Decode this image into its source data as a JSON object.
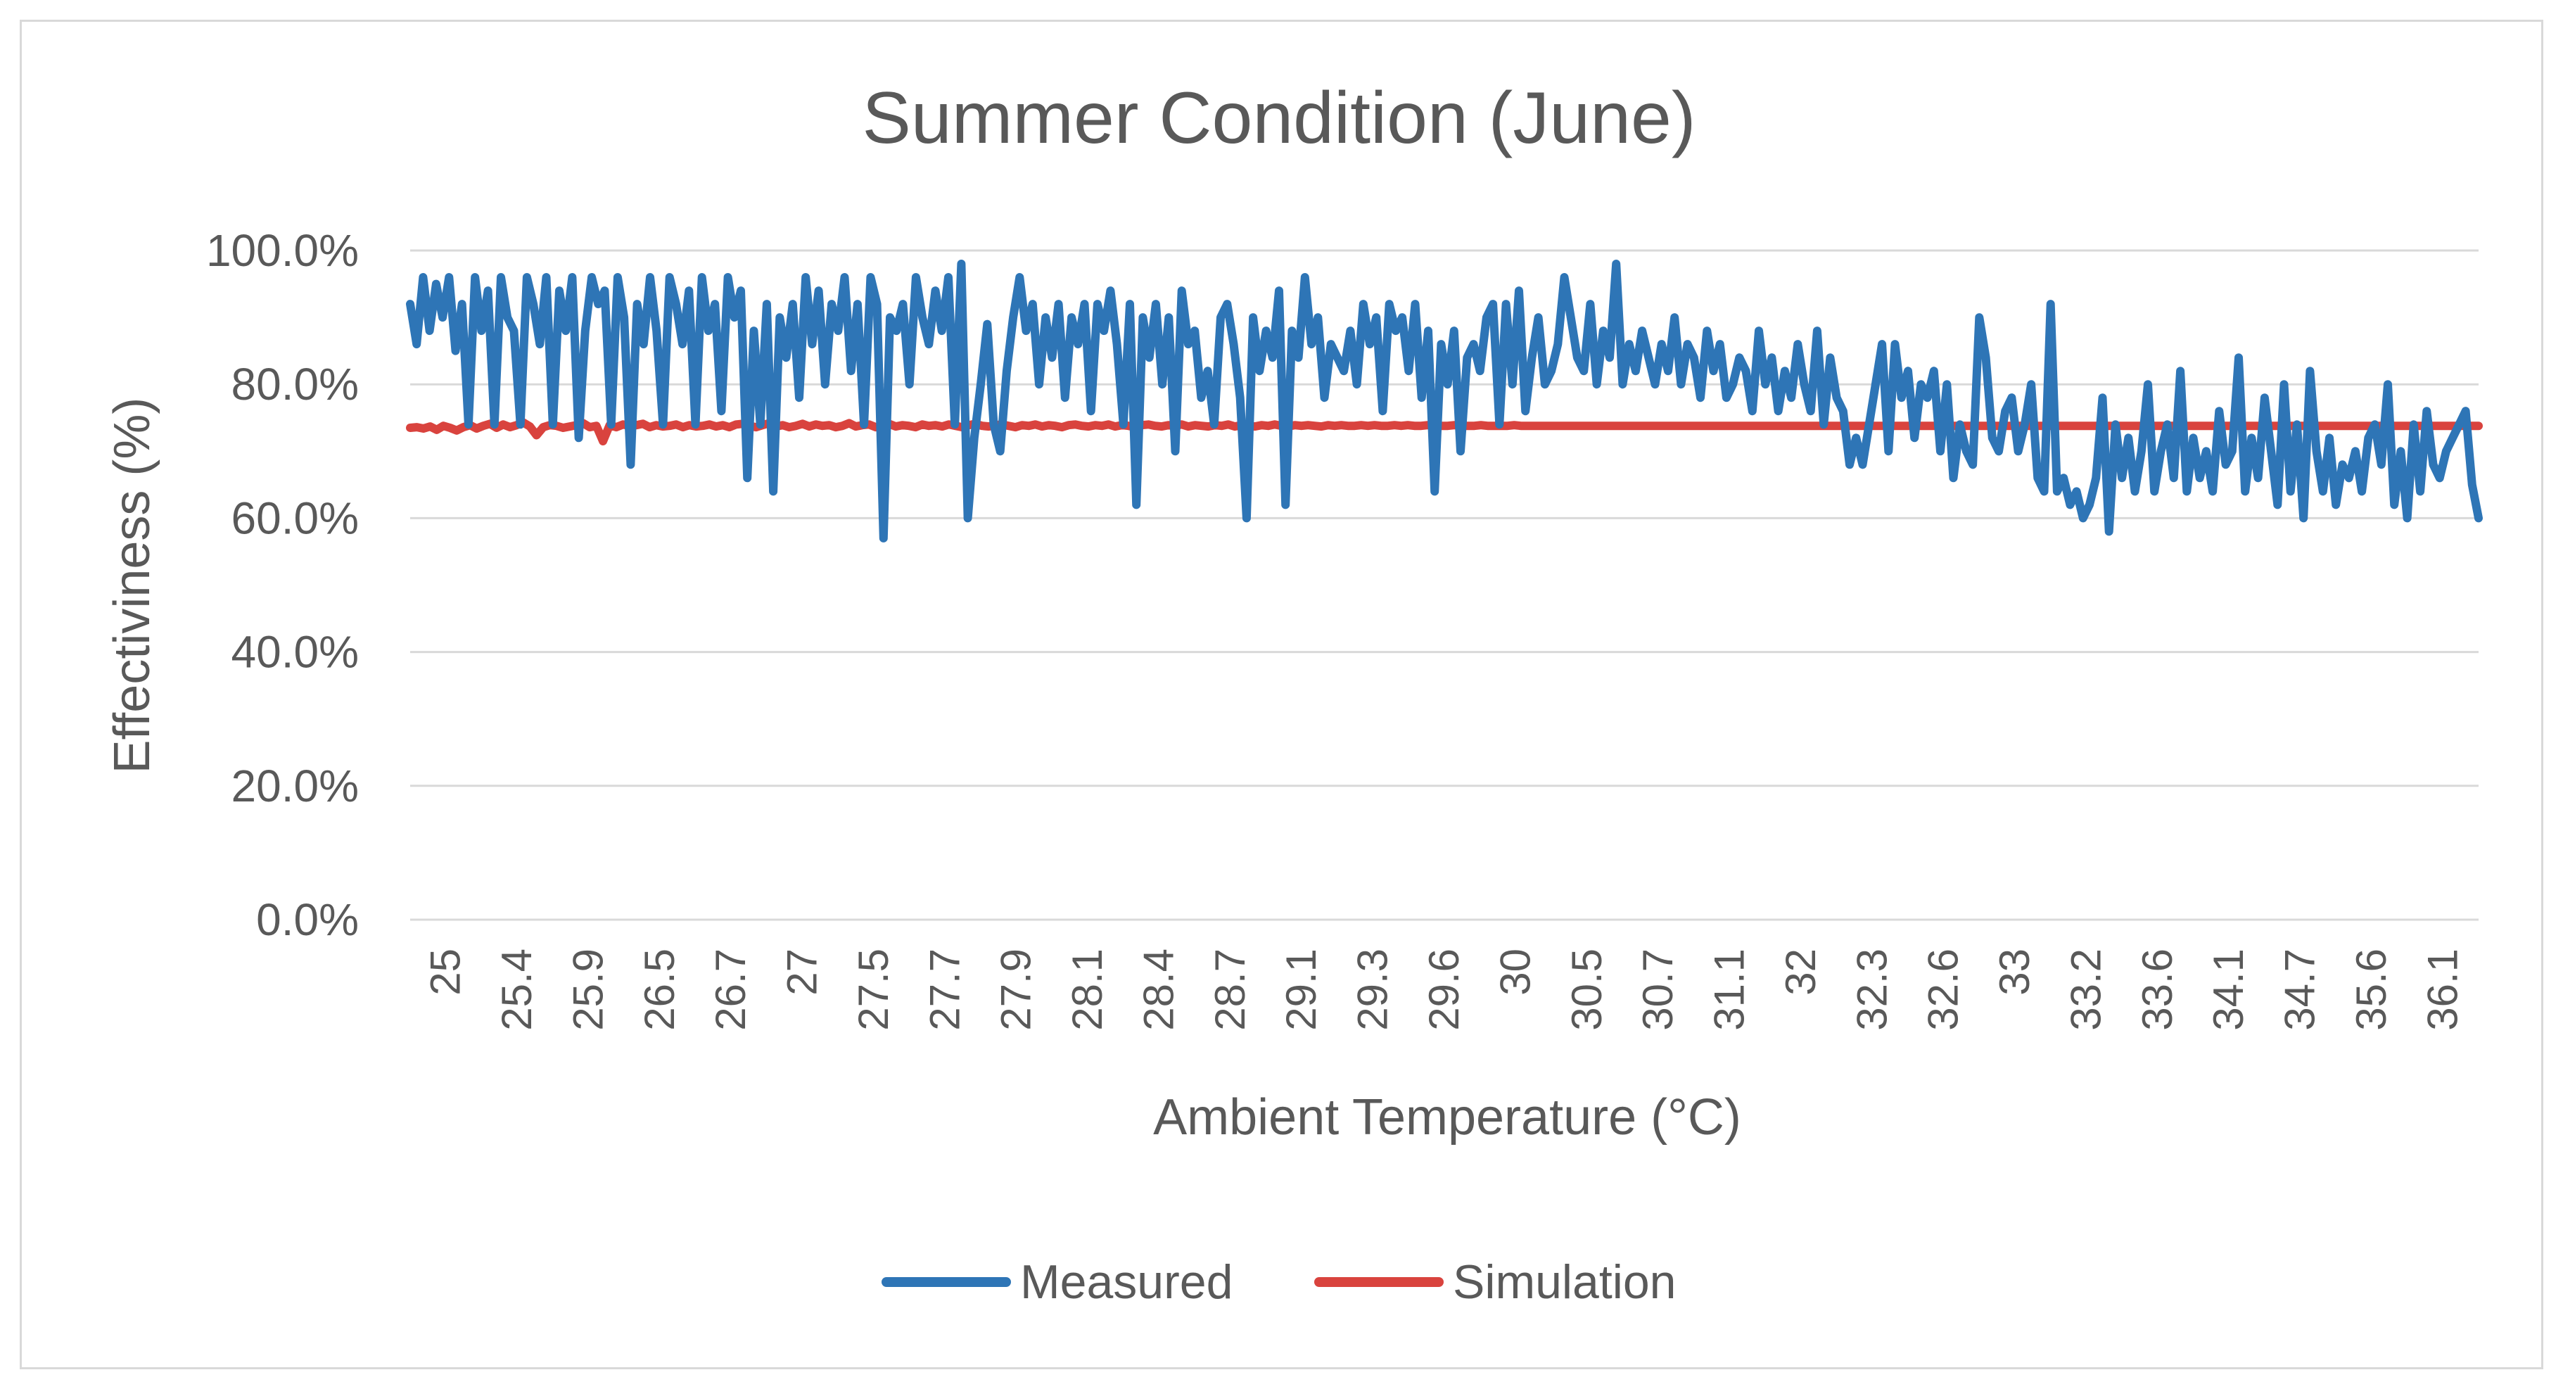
{
  "chart_data": {
    "type": "line",
    "title": "Summer Condition (June)",
    "xlabel": "Ambient Temperature (°C)",
    "ylabel": "Effectiviness (%)",
    "ylim": [
      0,
      100
    ],
    "y_ticks": [
      "0.0%",
      "20.0%",
      "40.0%",
      "60.0%",
      "80.0%",
      "100.0%"
    ],
    "x_tick_labels": [
      "25",
      "25.4",
      "25.9",
      "26.5",
      "26.7",
      "27",
      "27.5",
      "27.7",
      "27.9",
      "28.1",
      "28.4",
      "28.7",
      "29.1",
      "29.3",
      "29.6",
      "30",
      "30.5",
      "30.7",
      "31.1",
      "32",
      "32.3",
      "32.6",
      "33",
      "33.2",
      "33.6",
      "34.1",
      "34.7",
      "35.6",
      "36.1"
    ],
    "legend_position": "bottom",
    "series": [
      {
        "name": "Measured",
        "color": "#2e75b6",
        "values": [
          92,
          86,
          96,
          88,
          95,
          90,
          96,
          85,
          92,
          74,
          96,
          88,
          94,
          74,
          96,
          90,
          88,
          74,
          96,
          92,
          86,
          96,
          74,
          94,
          88,
          96,
          72,
          88,
          96,
          92,
          94,
          74,
          96,
          90,
          68,
          92,
          86,
          96,
          88,
          74,
          96,
          92,
          86,
          94,
          74,
          96,
          88,
          92,
          76,
          96,
          90,
          94,
          66,
          88,
          74,
          92,
          64,
          90,
          84,
          92,
          78,
          96,
          86,
          94,
          80,
          92,
          88,
          96,
          82,
          92,
          74,
          96,
          92,
          57,
          90,
          88,
          92,
          80,
          96,
          90,
          86,
          94,
          88,
          96,
          74,
          98,
          60,
          72,
          80,
          89,
          74,
          70,
          82,
          90,
          96,
          88,
          92,
          80,
          90,
          84,
          92,
          78,
          90,
          86,
          92,
          76,
          92,
          88,
          94,
          86,
          74,
          92,
          62,
          90,
          84,
          92,
          80,
          90,
          70,
          94,
          86,
          88,
          78,
          82,
          74,
          90,
          92,
          86,
          78,
          60,
          90,
          82,
          88,
          84,
          94,
          62,
          88,
          84,
          96,
          86,
          90,
          78,
          86,
          84,
          82,
          88,
          80,
          92,
          86,
          90,
          76,
          92,
          88,
          90,
          82,
          92,
          78,
          88,
          64,
          86,
          80,
          88,
          70,
          84,
          86,
          82,
          90,
          92,
          74,
          92,
          80,
          94,
          76,
          84,
          90,
          80,
          82,
          86,
          96,
          90,
          84,
          82,
          92,
          80,
          88,
          84,
          98,
          80,
          86,
          82,
          88,
          84,
          80,
          86,
          82,
          90,
          80,
          86,
          84,
          78,
          88,
          82,
          86,
          78,
          80,
          84,
          82,
          76,
          88,
          80,
          84,
          76,
          82,
          78,
          86,
          80,
          76,
          88,
          74,
          84,
          78,
          76,
          68,
          72,
          68,
          74,
          80,
          86,
          70,
          86,
          78,
          82,
          72,
          80,
          78,
          82,
          70,
          80,
          66,
          74,
          70,
          68,
          90,
          84,
          72,
          70,
          76,
          78,
          70,
          74,
          80,
          66,
          64,
          92,
          64,
          66,
          62,
          64,
          60,
          62,
          66,
          78,
          58,
          74,
          66,
          72,
          64,
          70,
          80,
          64,
          70,
          74,
          66,
          82,
          64,
          72,
          66,
          70,
          64,
          76,
          68,
          70,
          84,
          64,
          72,
          66,
          78,
          70,
          62,
          80,
          64,
          74,
          60,
          82,
          70,
          64,
          72,
          62,
          68,
          66,
          70,
          64,
          72,
          74,
          68,
          80,
          62,
          70,
          60,
          74,
          64,
          76,
          68,
          66,
          70,
          72,
          74,
          76,
          65,
          60
        ]
      },
      {
        "name": "Simulation",
        "color": "#d9433e",
        "values": [
          73.5,
          73.6,
          73.4,
          73.7,
          73.2,
          73.8,
          73.5,
          73.1,
          73.6,
          73.9,
          73.4,
          73.8,
          74.1,
          73.5,
          74.0,
          73.6,
          73.9,
          74.3,
          73.7,
          72.4,
          73.6,
          73.9,
          73.8,
          73.5,
          73.7,
          73.9,
          74.2,
          73.6,
          73.8,
          71.5,
          73.9,
          73.6,
          74.0,
          73.8,
          73.9,
          74.1,
          73.6,
          73.9,
          73.7,
          73.8,
          74.0,
          73.6,
          73.9,
          73.7,
          73.8,
          74.0,
          73.7,
          73.9,
          73.6,
          74.0,
          74.1,
          73.8,
          73.6,
          73.9,
          74.2,
          73.7,
          73.9,
          73.6,
          73.8,
          74.1,
          73.7,
          74.0,
          73.8,
          73.9,
          73.6,
          73.8,
          74.2,
          73.7,
          73.9,
          74.0,
          73.6,
          73.8,
          74.1,
          73.7,
          73.9,
          73.8,
          73.6,
          74.0,
          73.8,
          73.9,
          73.7,
          74.0,
          73.8,
          73.6,
          73.9,
          74.1,
          73.8,
          73.7,
          73.9,
          74.0,
          73.8,
          73.6,
          73.9,
          73.8,
          74.0,
          73.7,
          73.9,
          73.8,
          73.6,
          73.9,
          74.0,
          73.8,
          73.7,
          73.9,
          73.8,
          74.0,
          73.7,
          73.9,
          73.8,
          73.6,
          73.9,
          74.0,
          73.8,
          73.7,
          73.9,
          73.8,
          74.0,
          73.7,
          73.9,
          73.8,
          73.7,
          73.9,
          73.8,
          74.0,
          73.7,
          73.9,
          73.8,
          73.7,
          73.9,
          73.8,
          74.0,
          73.8,
          73.7,
          73.9,
          73.8,
          73.9,
          73.8,
          73.7,
          73.9,
          73.8,
          73.9,
          73.8,
          73.8,
          73.9,
          73.8,
          73.9,
          73.8,
          73.8,
          73.9,
          73.8,
          73.9,
          73.8,
          73.8,
          73.9,
          73.8,
          73.8,
          73.8,
          73.9,
          73.8,
          73.8,
          73.8,
          73.9,
          73.8,
          73.8,
          73.8,
          73.8,
          73.9,
          73.8,
          73.8,
          73.8,
          73.8,
          73.8,
          73.8,
          73.8,
          73.8,
          73.8,
          73.8,
          73.8,
          73.8,
          73.8,
          73.8,
          73.8,
          73.8,
          73.8,
          73.8,
          73.8,
          73.8,
          73.8,
          73.8,
          73.8,
          73.8,
          73.8,
          73.8,
          73.8,
          73.8,
          73.8,
          73.8,
          73.8,
          73.8,
          73.8,
          73.8,
          73.8,
          73.8,
          73.8,
          73.8,
          73.8,
          73.8,
          73.8,
          73.8,
          73.8,
          73.8,
          73.8,
          73.8,
          73.8,
          73.8,
          73.8,
          73.8,
          73.8,
          73.8,
          73.8,
          73.8,
          73.8,
          73.8,
          73.8,
          73.8,
          73.8,
          73.8,
          73.8,
          73.8,
          73.8,
          73.8,
          73.8,
          73.8,
          73.8,
          73.8,
          73.8,
          73.8,
          73.8,
          73.8,
          73.8,
          73.8,
          73.8,
          73.8,
          73.8,
          73.8,
          73.8,
          73.8,
          73.8,
          73.8,
          73.8,
          73.8,
          73.8,
          73.8,
          73.8,
          73.8,
          73.8,
          73.8,
          73.8,
          73.8,
          73.8,
          73.8,
          73.8,
          73.8,
          73.8,
          73.8,
          73.8,
          73.8,
          73.8,
          73.8,
          73.8,
          73.8,
          73.8,
          73.8,
          73.8,
          73.8,
          73.8,
          73.8,
          73.8,
          73.8,
          73.8,
          73.8,
          73.8,
          73.8,
          73.8,
          73.8,
          73.8,
          73.8,
          73.8,
          73.8,
          73.8,
          73.8,
          73.8,
          73.8,
          73.8,
          73.8,
          73.8,
          73.8,
          73.8,
          73.8,
          73.8,
          73.8,
          73.8,
          73.8,
          73.8,
          73.8,
          73.8,
          73.8,
          73.8,
          73.8,
          73.8,
          73.8,
          73.8
        ]
      }
    ]
  }
}
